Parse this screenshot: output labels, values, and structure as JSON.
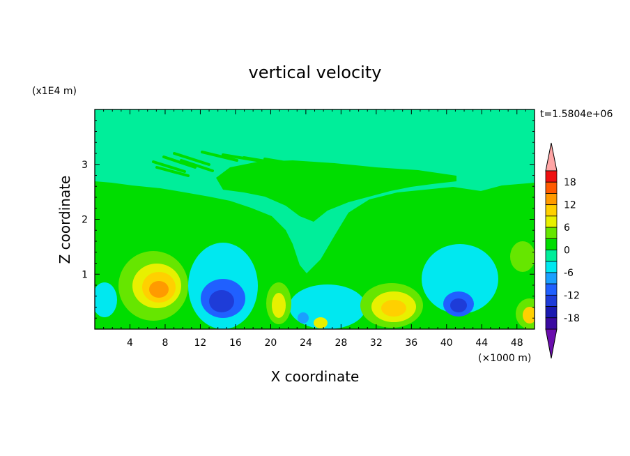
{
  "chart_data": {
    "type": "heatmap",
    "title": "vertical velocity",
    "xlabel": "X coordinate",
    "ylabel": "Z coordinate",
    "x_unit_label": "(×1000 m)",
    "y_unit_label": "(x1E4 m)",
    "time_label": "t=1.5804e+06",
    "xlim": [
      0,
      50
    ],
    "ylim": [
      0,
      4
    ],
    "x_ticks": [
      4,
      8,
      12,
      16,
      20,
      24,
      28,
      32,
      36,
      40,
      44,
      48
    ],
    "y_ticks": [
      1,
      2,
      3
    ],
    "colorbar": {
      "levels": [
        -21,
        -18,
        -15,
        -12,
        -9,
        -6,
        -3,
        0,
        3,
        6,
        9,
        12,
        15,
        18,
        21
      ],
      "tick_labels": [
        -18,
        -12,
        -6,
        0,
        6,
        12,
        18
      ],
      "colors": [
        "#6a0dad",
        "#3a0aa0",
        "#1a1ab0",
        "#1e3cd8",
        "#2060ff",
        "#1aa0ff",
        "#00e8f0",
        "#00ee9a",
        "#00dd00",
        "#66e600",
        "#e8f000",
        "#ffd000",
        "#ff9a00",
        "#ff5a00",
        "#ee1010",
        "#ffa5a5"
      ]
    },
    "features": [
      {
        "kind": "updraft",
        "x": 7,
        "z": 0.7,
        "peak": 12
      },
      {
        "kind": "downdraft",
        "x": 14.5,
        "z": 0.5,
        "peak": -13
      },
      {
        "kind": "updraft",
        "x": 21,
        "z": 0.4,
        "peak": 7
      },
      {
        "kind": "updraft",
        "x": 33.5,
        "z": 0.35,
        "peak": 9
      },
      {
        "kind": "downdraft",
        "x": 41,
        "z": 0.45,
        "peak": -12
      },
      {
        "kind": "updraft",
        "x": 49.5,
        "z": 0.3,
        "peak": 6
      }
    ]
  }
}
